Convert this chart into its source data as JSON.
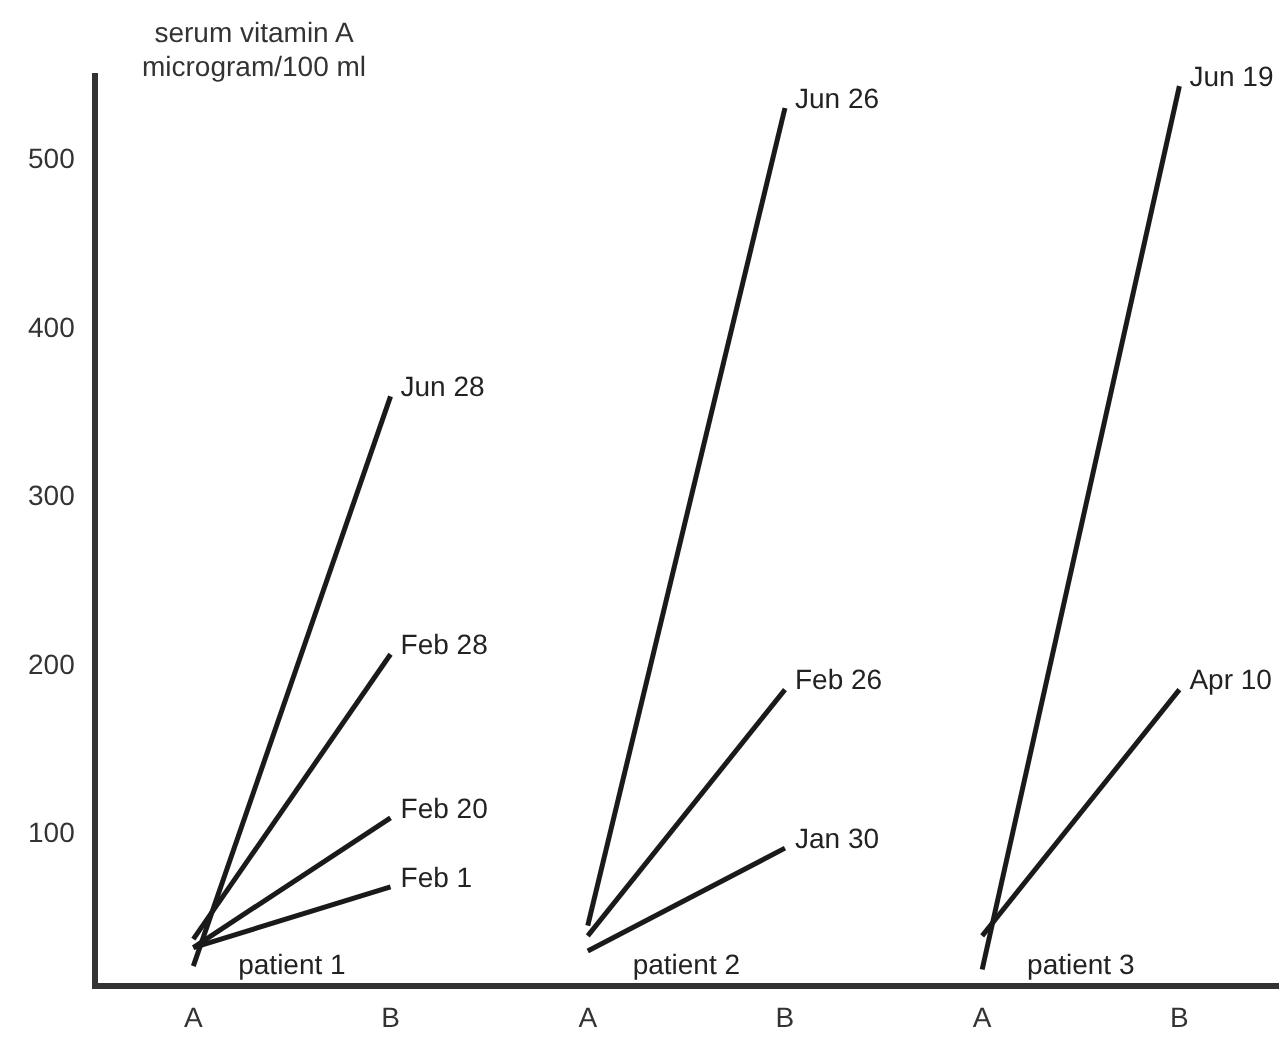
{
  "chart_data": {
    "type": "line",
    "ylabel": "serum vitamin A microgram/100 ml",
    "categories": [
      "A",
      "B",
      "A",
      "B",
      "A",
      "B"
    ],
    "series": [
      {
        "name": "Jun 28",
        "color": "#1a1a1a",
        "values": [
          22,
          360,
          null,
          null,
          null,
          null
        ]
      },
      {
        "name": "Feb 28",
        "color": "#1a1a1a",
        "values": [
          38,
          207,
          null,
          null,
          null,
          null
        ]
      },
      {
        "name": "Feb 20",
        "color": "#1a1a1a",
        "values": [
          33,
          110,
          null,
          null,
          null,
          null
        ]
      },
      {
        "name": "Feb 1",
        "color": "#1a1a1a",
        "values": [
          33,
          69,
          null,
          null,
          null,
          null
        ]
      },
      {
        "name": "Jun 26",
        "color": "#1a1a1a",
        "values": [
          null,
          null,
          46,
          531,
          null,
          null
        ]
      },
      {
        "name": "Feb 26",
        "color": "#1a1a1a",
        "values": [
          null,
          null,
          40,
          186,
          null,
          null
        ]
      },
      {
        "name": "Jan 30",
        "color": "#1a1a1a",
        "values": [
          null,
          null,
          31,
          92,
          null,
          null
        ]
      },
      {
        "name": "Jun 19",
        "color": "#1a1a1a",
        "values": [
          null,
          null,
          null,
          null,
          20,
          544
        ]
      },
      {
        "name": "Apr 10",
        "color": "#1a1a1a",
        "values": [
          null,
          null,
          null,
          null,
          40,
          186
        ]
      }
    ],
    "ylim": [
      10,
      550
    ],
    "yticks": [
      100,
      200,
      300,
      400,
      500
    ],
    "annotations": [
      "patient 1",
      "patient 2",
      "patient 3"
    ],
    "grid": false,
    "legend": false,
    "marker": "none",
    "line_style": "solid"
  }
}
